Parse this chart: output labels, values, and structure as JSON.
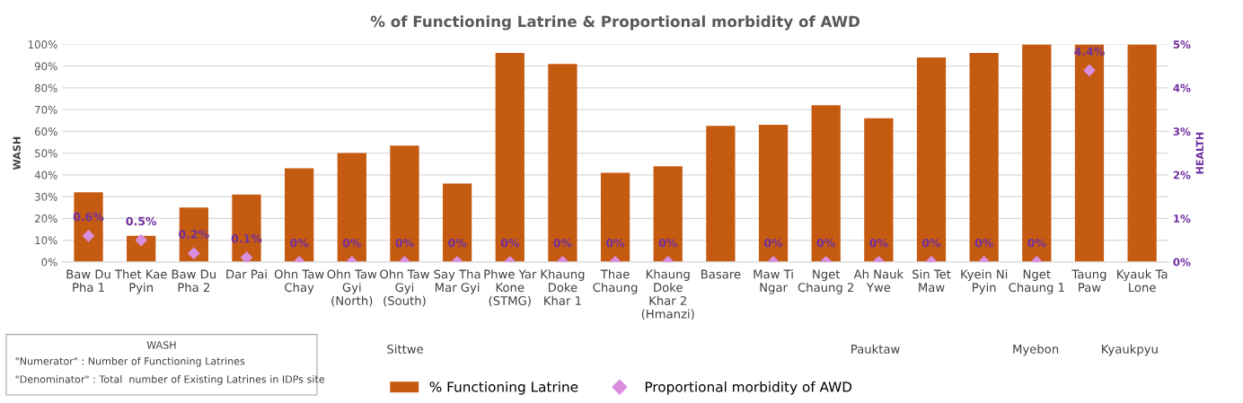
{
  "chart_data": {
    "type": "bar",
    "title": "% of Functioning Latrine & Proportional morbidity of AWD",
    "categories": [
      "Baw Du\nPha 1",
      "Thet Kae\nPyin",
      "Baw Du\nPha 2",
      "Dar Pai",
      "Ohn Taw\nChay",
      "Ohn Taw\nGyi\n(North)",
      "Ohn Taw\nGyi\n(South)",
      "Say Tha\nMar Gyi",
      "Phwe Yar\nKone\n(STMG)",
      "Khaung\nDoke\nKhar 1",
      "Thae\nChaung",
      "Khaung\nDoke\nKhar 2\n(Hmanzi)",
      "Basare",
      "Maw Ti\nNgar",
      "Nget\nChaung 2",
      "Ah Nauk\nYwe",
      "Sin Tet\nMaw",
      "Kyein Ni\nPyin",
      "Nget\nChaung 1",
      "Taung\nPaw",
      "Kyauk Ta\nLone"
    ],
    "series": [
      {
        "name": "% Functioning Latrine",
        "color": "#c55a11",
        "values": [
          32,
          12,
          25,
          31,
          43,
          50,
          53.5,
          36,
          96,
          91,
          41,
          44,
          62.5,
          63,
          72,
          66,
          94,
          96,
          100,
          100,
          100
        ]
      },
      {
        "name": "Proportional morbidity of AWD",
        "type": "scatter",
        "axis": "y2",
        "color": "#d98ee0",
        "marker": "diamond",
        "values": [
          0.6,
          0.5,
          0.2,
          0.1,
          0,
          0,
          0,
          0,
          0,
          0,
          0,
          0,
          null,
          0,
          0,
          0,
          0,
          0,
          0,
          4.4,
          null
        ],
        "value_labels": [
          "0.6%",
          "0.5%",
          "0.2%",
          "0.1%",
          "0%",
          "0%",
          "0%",
          "0%",
          "0%",
          "0%",
          "0%",
          "0%",
          null,
          "0%",
          "0%",
          "0%",
          "0%",
          "0%",
          "0%",
          "4.4%",
          null
        ]
      }
    ],
    "ylabel": "WASH",
    "y2label": "HEALTH",
    "ylim": [
      0,
      100
    ],
    "yticks": [
      {
        "value": 0,
        "label": "0%"
      },
      {
        "value": 10,
        "label": "10%"
      },
      {
        "value": 20,
        "label": "20%"
      },
      {
        "value": 30,
        "label": "30%"
      },
      {
        "value": 40,
        "label": "40%"
      },
      {
        "value": 50,
        "label": "50%"
      },
      {
        "value": 60,
        "label": "60%"
      },
      {
        "value": 70,
        "label": "70%"
      },
      {
        "value": 80,
        "label": "80%"
      },
      {
        "value": 90,
        "label": "90%"
      },
      {
        "value": 100,
        "label": "100%"
      }
    ],
    "y2lim": [
      0,
      5
    ],
    "y2ticks": [
      {
        "value": 0,
        "label": "0%"
      },
      {
        "value": 1,
        "label": "1%"
      },
      {
        "value": 2,
        "label": "2%"
      },
      {
        "value": 3,
        "label": "3%"
      },
      {
        "value": 4,
        "label": "4%"
      },
      {
        "value": 5,
        "label": "5%"
      }
    ],
    "grid": "y",
    "legend": "bottom",
    "annotations": [
      "WASH",
      "\"Numerator\" : Number of Functioning Latrines",
      "\"Denominator\" : Total  number of Existing Latrines in IDPs site",
      "Sittwe",
      "Pauktaw",
      "Myebon",
      "Kyaukpyu"
    ]
  }
}
